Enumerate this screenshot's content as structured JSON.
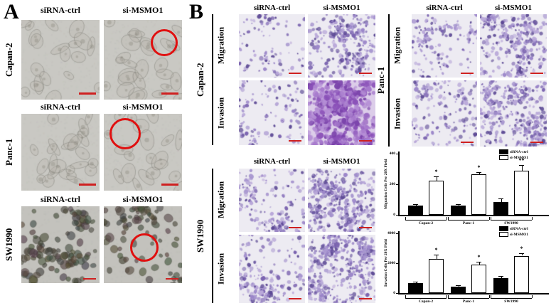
{
  "labels": {
    "sirna_ctrl": "siRNA-ctrl",
    "si_msmo1": "si-MSMO1",
    "migration": "Migration",
    "invasion": "Invasion"
  },
  "panel_a": {
    "label": "A",
    "rows": [
      {
        "cell_line": "Capan-2"
      },
      {
        "cell_line": "Panc-1"
      },
      {
        "cell_line": "SW1990"
      }
    ]
  },
  "panel_b": {
    "label": "B",
    "blocks": [
      {
        "cell_line": "Capan-2"
      },
      {
        "cell_line": "Panc-1"
      },
      {
        "cell_line": "SW1990"
      }
    ]
  },
  "colors": {
    "annotation_red": "#e01010",
    "scalebar_red": "#cf2020",
    "stain_purple": "#8a76c2",
    "bar_ctrl": "#000000",
    "bar_simsmo1": "#ffffff"
  },
  "chart_data": [
    {
      "type": "bar",
      "title": "",
      "categories": [
        "Capan-2",
        "Panc-1",
        "SW1990"
      ],
      "series": [
        {
          "name": "siRNA-ctrl",
          "color": "#000000",
          "values": [
            60,
            60,
            85
          ],
          "errors": [
            8,
            8,
            20
          ]
        },
        {
          "name": "si-MSMO1",
          "color": "#ffffff",
          "values": [
            225,
            265,
            290
          ],
          "errors": [
            25,
            12,
            35
          ]
        }
      ],
      "significance": [
        "*",
        "*",
        "**"
      ],
      "xlabel": "",
      "ylabel": "Migration Cells Per 20X Field",
      "ylim": [
        0,
        400
      ],
      "yticks": [
        0,
        200,
        400
      ],
      "grid": false,
      "legend_position": "top-right"
    },
    {
      "type": "bar",
      "title": "",
      "categories": [
        "Capan-2",
        "Panc-1",
        "SW1990"
      ],
      "series": [
        {
          "name": "siRNA-ctrl",
          "color": "#000000",
          "values": [
            650,
            450,
            1000
          ],
          "errors": [
            100,
            80,
            120
          ]
        },
        {
          "name": "si-MSMO1",
          "color": "#ffffff",
          "values": [
            2300,
            1900,
            2500
          ],
          "errors": [
            250,
            200,
            150
          ]
        }
      ],
      "significance": [
        "*",
        "*",
        "*"
      ],
      "xlabel": "",
      "ylabel": "Invasion Cells Per 20X Field",
      "ylim": [
        0,
        4000
      ],
      "yticks": [
        0,
        2000,
        4000
      ],
      "grid": false,
      "legend_position": "top-right"
    }
  ]
}
